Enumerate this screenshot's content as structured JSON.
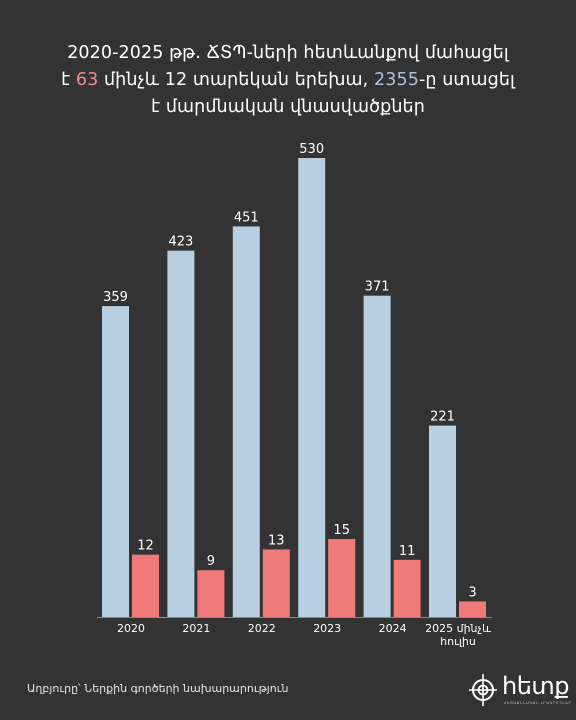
{
  "title": {
    "line1": "2020-2025 թթ. ՃՏՊ-ների հետևանքով մահացել",
    "line2_pre": "է ",
    "line2_hl1": "63",
    "line2_mid": " մինչև 12 տարեկան երեխա, ",
    "line2_hl2": "2355",
    "line2_post": "-ը ստացել",
    "line3": "է մարմնական վնասվածքներ"
  },
  "chart_data": {
    "type": "bar",
    "categories": [
      "2020",
      "2021",
      "2022",
      "2023",
      "2024",
      "2025 մինչև հուլիս"
    ],
    "category_lines": [
      [
        "2020"
      ],
      [
        "2021"
      ],
      [
        "2022"
      ],
      [
        "2023"
      ],
      [
        "2024"
      ],
      [
        "2025 մինչև",
        "հուլիս"
      ]
    ],
    "series": [
      {
        "values": [
          359,
          423,
          451,
          530,
          371,
          221
        ],
        "color": "#b8d0e2"
      },
      {
        "values": [
          12,
          9,
          13,
          15,
          11,
          3
        ],
        "color": "#f07a7a"
      }
    ],
    "ylim": [
      0,
      530
    ],
    "grid": false
  },
  "source": "Աղբյուրը՝ Ներքին գործերի նախարարություն",
  "logo": {
    "text": "հետք",
    "subtitle": "ՀԵՏԱՔՆՆԱԿԱՆ ԼՐԱԳՐՈՂՆԵՐ"
  },
  "colors": {
    "background": "#333333",
    "accent_red": "#f28c8c",
    "accent_blue": "#a9c4dc"
  }
}
